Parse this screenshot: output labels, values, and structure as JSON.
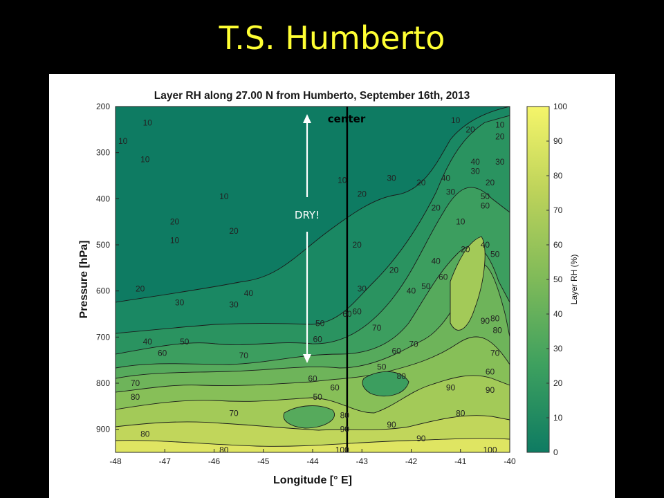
{
  "slide_title": "T.S. Humberto",
  "chart_data": {
    "type": "heatmap",
    "title": "Layer RH along 27.00 N from Humberto, September 16th, 2013",
    "xlabel": "Longitude [° E]",
    "ylabel": "Pressure [hPa]",
    "colorbar_label": "Layer RH (%)",
    "xlim": [
      -48,
      -40
    ],
    "ylim": [
      200,
      950
    ],
    "y_reversed": true,
    "x_ticks": [
      -48,
      -47,
      -46,
      -45,
      -44,
      -43,
      -42,
      -41,
      -40
    ],
    "y_ticks": [
      200,
      300,
      400,
      500,
      600,
      700,
      800,
      900
    ],
    "colorbar_range": [
      0,
      100
    ],
    "colorbar_ticks": [
      0,
      10,
      20,
      30,
      40,
      50,
      60,
      70,
      80,
      90,
      100
    ],
    "colormap": [
      "#0e7b62",
      "#3da05f",
      "#7fba59",
      "#bcd25a",
      "#f5f56a"
    ],
    "center_longitude": -43.3,
    "contour_labels": [
      {
        "text": "10",
        "lon": -47.35,
        "p": 235
      },
      {
        "text": "10",
        "lon": -47.85,
        "p": 275
      },
      {
        "text": "10",
        "lon": -47.4,
        "p": 315
      },
      {
        "text": "10",
        "lon": -45.8,
        "p": 395
      },
      {
        "text": "20",
        "lon": -46.8,
        "p": 450
      },
      {
        "text": "10",
        "lon": -46.8,
        "p": 490
      },
      {
        "text": "20",
        "lon": -45.6,
        "p": 470
      },
      {
        "text": "10",
        "lon": -43.4,
        "p": 360
      },
      {
        "text": "20",
        "lon": -43.0,
        "p": 390
      },
      {
        "text": "30",
        "lon": -42.4,
        "p": 355
      },
      {
        "text": "20",
        "lon": -41.8,
        "p": 365
      },
      {
        "text": "10",
        "lon": -41.1,
        "p": 230
      },
      {
        "text": "10",
        "lon": -40.2,
        "p": 240
      },
      {
        "text": "20",
        "lon": -40.8,
        "p": 250
      },
      {
        "text": "20",
        "lon": -40.2,
        "p": 265
      },
      {
        "text": "40",
        "lon": -40.7,
        "p": 320
      },
      {
        "text": "30",
        "lon": -40.7,
        "p": 340
      },
      {
        "text": "30",
        "lon": -40.2,
        "p": 320
      },
      {
        "text": "40",
        "lon": -41.3,
        "p": 355
      },
      {
        "text": "20",
        "lon": -40.4,
        "p": 365
      },
      {
        "text": "50",
        "lon": -40.5,
        "p": 395
      },
      {
        "text": "30",
        "lon": -41.2,
        "p": 385
      },
      {
        "text": "10",
        "lon": -41.0,
        "p": 450
      },
      {
        "text": "60",
        "lon": -40.5,
        "p": 415
      },
      {
        "text": "20",
        "lon": -41.5,
        "p": 420
      },
      {
        "text": "20",
        "lon": -43.1,
        "p": 500
      },
      {
        "text": "20",
        "lon": -42.35,
        "p": 555
      },
      {
        "text": "30",
        "lon": -43.0,
        "p": 595
      },
      {
        "text": "40",
        "lon": -42.0,
        "p": 600
      },
      {
        "text": "50",
        "lon": -41.7,
        "p": 590
      },
      {
        "text": "60",
        "lon": -41.35,
        "p": 570
      },
      {
        "text": "40",
        "lon": -41.5,
        "p": 535
      },
      {
        "text": "50",
        "lon": -40.3,
        "p": 520
      },
      {
        "text": "40",
        "lon": -40.5,
        "p": 500
      },
      {
        "text": "30",
        "lon": -40.0,
        "p": 480
      },
      {
        "text": "20",
        "lon": -40.9,
        "p": 510
      },
      {
        "text": "20",
        "lon": -47.5,
        "p": 595
      },
      {
        "text": "30",
        "lon": -46.7,
        "p": 625
      },
      {
        "text": "40",
        "lon": -45.3,
        "p": 605
      },
      {
        "text": "30",
        "lon": -45.6,
        "p": 630
      },
      {
        "text": "50",
        "lon": -43.85,
        "p": 670
      },
      {
        "text": "60",
        "lon": -43.1,
        "p": 645
      },
      {
        "text": "60",
        "lon": -43.9,
        "p": 705
      },
      {
        "text": "40",
        "lon": -47.35,
        "p": 710
      },
      {
        "text": "50",
        "lon": -46.6,
        "p": 710
      },
      {
        "text": "60",
        "lon": -47.05,
        "p": 735
      },
      {
        "text": "70",
        "lon": -45.4,
        "p": 740
      },
      {
        "text": "70",
        "lon": -42.7,
        "p": 680
      },
      {
        "text": "60",
        "lon": -42.3,
        "p": 730
      },
      {
        "text": "50",
        "lon": -42.6,
        "p": 765
      },
      {
        "text": "80",
        "lon": -42.2,
        "p": 785
      },
      {
        "text": "60",
        "lon": -44.0,
        "p": 790
      },
      {
        "text": "50",
        "lon": -43.9,
        "p": 830
      },
      {
        "text": "60",
        "lon": -43.55,
        "p": 810
      },
      {
        "text": "70",
        "lon": -47.6,
        "p": 800
      },
      {
        "text": "80",
        "lon": -47.6,
        "p": 830
      },
      {
        "text": "80",
        "lon": -47.4,
        "p": 910
      },
      {
        "text": "70",
        "lon": -45.6,
        "p": 865
      },
      {
        "text": "80",
        "lon": -43.35,
        "p": 870
      },
      {
        "text": "90",
        "lon": -43.35,
        "p": 900
      },
      {
        "text": "90",
        "lon": -42.4,
        "p": 890
      },
      {
        "text": "80",
        "lon": -40.3,
        "p": 660
      },
      {
        "text": "70",
        "lon": -40.3,
        "p": 735
      },
      {
        "text": "60",
        "lon": -40.4,
        "p": 775
      },
      {
        "text": "90",
        "lon": -40.4,
        "p": 815
      },
      {
        "text": "90",
        "lon": -41.2,
        "p": 810
      },
      {
        "text": "80",
        "lon": -41.0,
        "p": 865
      },
      {
        "text": "90",
        "lon": -41.8,
        "p": 920
      },
      {
        "text": "100",
        "lon": -40.4,
        "p": 945
      },
      {
        "text": "100",
        "lon": -43.4,
        "p": 945
      },
      {
        "text": "80",
        "lon": -45.8,
        "p": 945
      },
      {
        "text": "60",
        "lon": -43.3,
        "p": 650
      },
      {
        "text": "90",
        "lon": -40.5,
        "p": 665
      },
      {
        "text": "80",
        "lon": -40.25,
        "p": 685
      },
      {
        "text": "70",
        "lon": -41.95,
        "p": 715
      }
    ]
  },
  "annotations": {
    "center_label": "center",
    "dry_label": "DRY!"
  }
}
